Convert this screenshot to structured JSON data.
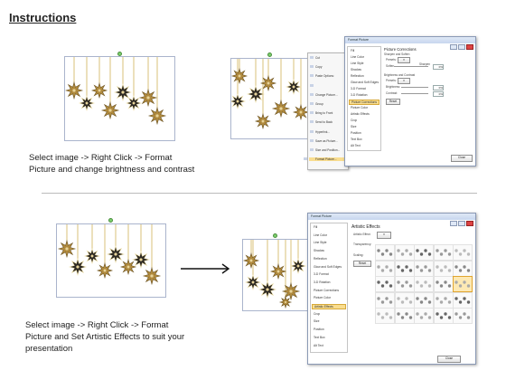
{
  "title": "Instructions",
  "step1": {
    "caption_line1": "Select image -> Right Click -> Format",
    "caption_line2": "Picture and change brightness and contrast"
  },
  "step2": {
    "caption_line1": "Select image -> Right Click -> Format",
    "caption_line2": "Picture and Set Artistic Effects to suit your",
    "caption_line3": "presentation"
  },
  "context_menu": {
    "items": [
      "Cut",
      "Copy",
      "Paste Options:",
      "",
      "Change Picture...",
      "Group",
      "Bring to Front",
      "Send to Back",
      "Hyperlink...",
      "Save as Picture...",
      "Size and Position...",
      "Format Picture..."
    ]
  },
  "dialog1": {
    "title": "Format Picture",
    "nav": [
      "Fill",
      "Line Color",
      "Line Style",
      "Shadow",
      "Reflection",
      "Glow and Soft Edges",
      "3-D Format",
      "3-D Rotation",
      "Picture Corrections",
      "Picture Color",
      "Artistic Effects",
      "Crop",
      "Size",
      "Position",
      "Text Box",
      "Alt Text"
    ],
    "selected_nav": "Picture Corrections",
    "heading": "Picture Corrections",
    "sharpen_section": "Sharpen and Soften",
    "presets_label": "Presets:",
    "soften_label": "Soften",
    "sharpen_label": "Sharpen",
    "sharpen_value": "0%",
    "brightness_section": "Brightness and Contrast",
    "brightness_label": "Brightness:",
    "brightness_value": "0%",
    "contrast_label": "Contrast:",
    "contrast_value": "0%",
    "reset_label": "Reset",
    "close_label": "Close"
  },
  "dialog2": {
    "title": "Format Picture",
    "nav": [
      "Fill",
      "Line Color",
      "Line Style",
      "Shadow",
      "Reflection",
      "Glow and Soft Edges",
      "3-D Format",
      "3-D Rotation",
      "Picture Corrections",
      "Picture Color",
      "Artistic Effects",
      "Crop",
      "Size",
      "Position",
      "Text Box",
      "Alt Text"
    ],
    "selected_nav": "Artistic Effects",
    "heading": "Artistic Effects",
    "effect_label": "Artistic Effect:",
    "transparency_label": "Transparency:",
    "scaling_label": "Scaling:",
    "reset_label": "Reset",
    "close_label": "Close"
  },
  "colors": {
    "accent_highlight": "#f9dd8f",
    "star_gold": "#b08a3e",
    "star_dark": "#2e2a24",
    "string_gold": "#c9a640"
  }
}
